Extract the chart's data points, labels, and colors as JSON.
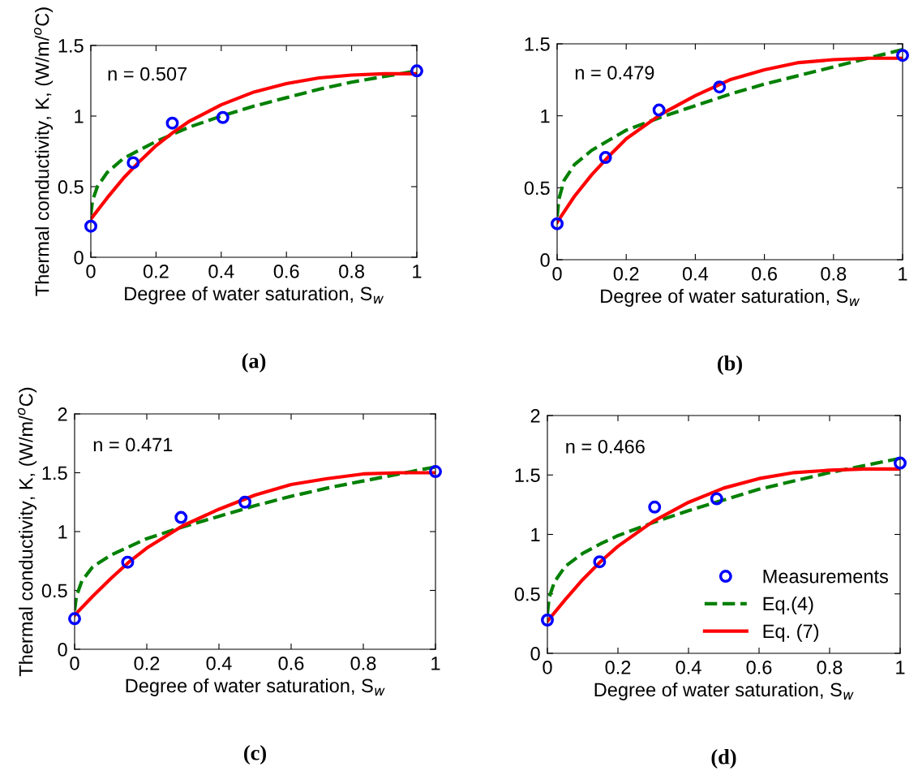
{
  "chart_data": [
    {
      "type": "scatter",
      "xlabel": "Degree of water saturation, S$_{w}$",
      "ylabel": "Thermal conductivity, K, (W/m/$^{o}$C)",
      "annotations": [
        "n = 0.507",
        "(a)"
      ],
      "xlim": [
        0,
        1
      ],
      "xticks": [
        0,
        0.2,
        0.4,
        0.6,
        0.8,
        1
      ],
      "ylim": [
        0,
        1.5
      ],
      "yticks": [
        0,
        0.5,
        1,
        1.5
      ],
      "grid": false,
      "legend": false,
      "series": [
        {
          "color": "#0000ff",
          "marker": "circle",
          "x": [
            0,
            0.13,
            0.25,
            0.405,
            1
          ],
          "values": [
            0.22,
            0.67,
            0.95,
            0.99,
            1.32
          ]
        },
        {
          "type": "line",
          "color": "#008000",
          "line_style": "dashed",
          "x": [
            0,
            0.005,
            0.02,
            0.05,
            0.1,
            0.15,
            0.2,
            0.25,
            0.3,
            0.4,
            0.5,
            0.6,
            0.7,
            0.8,
            0.9,
            1
          ],
          "values": [
            0.3,
            0.4,
            0.5,
            0.6,
            0.7,
            0.76,
            0.82,
            0.87,
            0.92,
            1.0,
            1.07,
            1.13,
            1.19,
            1.24,
            1.28,
            1.32
          ]
        },
        {
          "type": "line",
          "color": "#ff0000",
          "line_style": "solid",
          "x": [
            0,
            0.05,
            0.1,
            0.15,
            0.2,
            0.25,
            0.3,
            0.4,
            0.5,
            0.6,
            0.7,
            0.8,
            0.9,
            1
          ],
          "values": [
            0.27,
            0.42,
            0.56,
            0.68,
            0.79,
            0.88,
            0.96,
            1.08,
            1.17,
            1.23,
            1.27,
            1.29,
            1.3,
            1.3
          ]
        }
      ]
    },
    {
      "type": "scatter",
      "xlabel": "Degree of water saturation, S$_{w}$",
      "annotations": [
        "n = 0.479",
        "(b)"
      ],
      "xlim": [
        0,
        1
      ],
      "xticks": [
        0,
        0.2,
        0.4,
        0.6,
        0.8,
        1
      ],
      "ylim": [
        0,
        1.5
      ],
      "yticks": [
        0,
        0.5,
        1,
        1.5
      ],
      "grid": false,
      "legend": false,
      "series": [
        {
          "color": "#0000ff",
          "marker": "circle",
          "x": [
            0,
            0.14,
            0.295,
            0.47,
            1
          ],
          "values": [
            0.25,
            0.71,
            1.04,
            1.2,
            1.42
          ]
        },
        {
          "type": "line",
          "color": "#008000",
          "line_style": "dashed",
          "x": [
            0,
            0.005,
            0.02,
            0.05,
            0.1,
            0.15,
            0.2,
            0.3,
            0.4,
            0.5,
            0.6,
            0.7,
            0.8,
            0.9,
            1
          ],
          "values": [
            0.3,
            0.42,
            0.55,
            0.66,
            0.76,
            0.83,
            0.9,
            0.99,
            1.07,
            1.15,
            1.22,
            1.28,
            1.34,
            1.4,
            1.46
          ]
        },
        {
          "type": "line",
          "color": "#ff0000",
          "line_style": "solid",
          "x": [
            0,
            0.05,
            0.1,
            0.15,
            0.2,
            0.3,
            0.4,
            0.5,
            0.6,
            0.7,
            0.8,
            0.9,
            1
          ],
          "values": [
            0.26,
            0.44,
            0.59,
            0.72,
            0.84,
            1.01,
            1.14,
            1.25,
            1.32,
            1.37,
            1.39,
            1.4,
            1.4
          ]
        }
      ]
    },
    {
      "type": "scatter",
      "xlabel": "Degree of water saturation, S$_{w}$",
      "ylabel": "Thermal conductivity, K, (W/m/$^{o}$C)",
      "annotations": [
        "n = 0.471",
        "(c)"
      ],
      "xlim": [
        0,
        1
      ],
      "xticks": [
        0,
        0.2,
        0.4,
        0.6,
        0.8,
        1
      ],
      "ylim": [
        0,
        2
      ],
      "yticks": [
        0,
        0.5,
        1,
        1.5,
        2
      ],
      "grid": false,
      "legend": false,
      "series": [
        {
          "color": "#0000ff",
          "marker": "circle",
          "x": [
            0,
            0.147,
            0.295,
            0.472,
            1
          ],
          "values": [
            0.26,
            0.74,
            1.12,
            1.25,
            1.51
          ]
        },
        {
          "type": "line",
          "color": "#008000",
          "line_style": "dashed",
          "x": [
            0,
            0.005,
            0.02,
            0.05,
            0.1,
            0.15,
            0.2,
            0.3,
            0.4,
            0.5,
            0.6,
            0.7,
            0.8,
            0.9,
            1
          ],
          "values": [
            0.33,
            0.45,
            0.58,
            0.7,
            0.8,
            0.87,
            0.94,
            1.04,
            1.13,
            1.22,
            1.3,
            1.37,
            1.43,
            1.49,
            1.55
          ]
        },
        {
          "type": "line",
          "color": "#ff0000",
          "line_style": "solid",
          "x": [
            0,
            0.05,
            0.1,
            0.15,
            0.2,
            0.3,
            0.4,
            0.5,
            0.6,
            0.7,
            0.8,
            0.9,
            1
          ],
          "values": [
            0.29,
            0.45,
            0.6,
            0.74,
            0.86,
            1.05,
            1.19,
            1.31,
            1.4,
            1.45,
            1.49,
            1.5,
            1.5
          ]
        }
      ]
    },
    {
      "type": "scatter",
      "xlabel": "Degree of water saturation, S$_{w}$",
      "annotations": [
        "n = 0.466",
        "(d)"
      ],
      "xlim": [
        0,
        1
      ],
      "xticks": [
        0,
        0.2,
        0.4,
        0.6,
        0.8,
        1
      ],
      "ylim": [
        0,
        2
      ],
      "yticks": [
        0,
        0.5,
        1,
        1.5,
        2
      ],
      "grid": false,
      "legend": "bottom right",
      "series": [
        {
          "name": "Measurements",
          "color": "#0000ff",
          "marker": "circle",
          "x": [
            0,
            0.148,
            0.304,
            0.48,
            1
          ],
          "values": [
            0.28,
            0.77,
            1.23,
            1.3,
            1.6
          ]
        },
        {
          "type": "line",
          "name": "Eq.(4)",
          "color": "#008000",
          "line_style": "dashed",
          "x": [
            0,
            0.005,
            0.02,
            0.05,
            0.1,
            0.15,
            0.2,
            0.3,
            0.4,
            0.5,
            0.6,
            0.7,
            0.8,
            0.9,
            1
          ],
          "values": [
            0.33,
            0.47,
            0.6,
            0.73,
            0.84,
            0.92,
            0.99,
            1.1,
            1.2,
            1.29,
            1.38,
            1.45,
            1.52,
            1.58,
            1.64
          ]
        },
        {
          "type": "line",
          "name": "Eq. (7)",
          "color": "#ff0000",
          "line_style": "solid",
          "x": [
            0,
            0.05,
            0.1,
            0.15,
            0.2,
            0.3,
            0.4,
            0.5,
            0.6,
            0.7,
            0.8,
            0.9,
            1
          ],
          "values": [
            0.27,
            0.45,
            0.62,
            0.77,
            0.9,
            1.11,
            1.27,
            1.39,
            1.47,
            1.52,
            1.54,
            1.55,
            1.55
          ]
        }
      ]
    }
  ]
}
